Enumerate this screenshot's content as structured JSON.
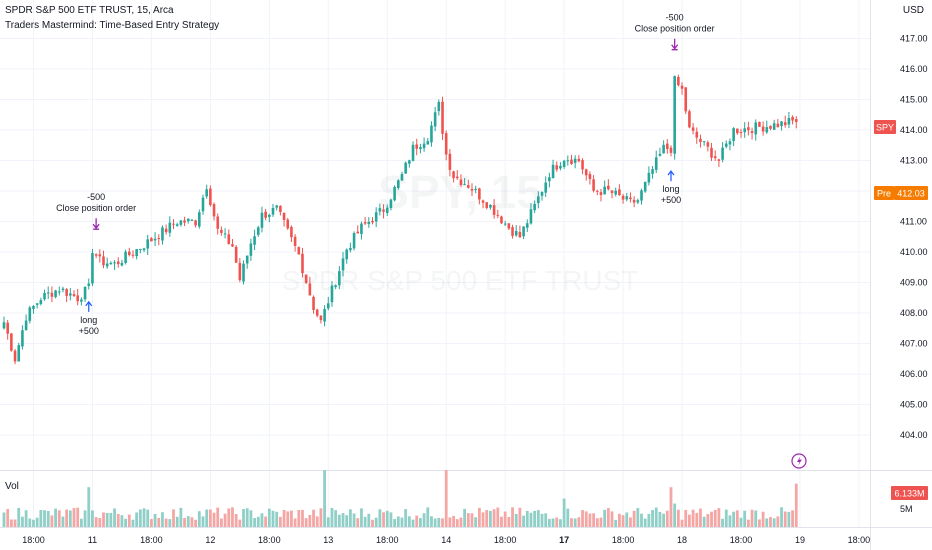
{
  "header": {
    "symbol_line": "SPDR S&P 500 ETF TRUST, 15, Arca",
    "strategy_line": "Traders Mastermind: Time-Based Entry Strategy",
    "currency": "USD",
    "volume_label": "Vol"
  },
  "watermark": {
    "ticker": "SPY, 15",
    "name": "SPDR S&P 500 ETF TRUST"
  },
  "badges": {
    "last_price_label": "SPY",
    "pre_label": "Pre",
    "pre_value": "412.03",
    "volume_value": "6.133M",
    "volume_ma": "5M"
  },
  "colors": {
    "up": "#26a69a",
    "down": "#ef5350",
    "vol_up": "#8fcfc7",
    "vol_down": "#f4a6a4",
    "entry_arrow": "#2962ff",
    "exit_arrow": "#9c27b0",
    "pre_badge": "#f57c00",
    "grid": "#f0f3fa"
  },
  "annotations": [
    {
      "type": "exit",
      "qty": "-500",
      "text": "Close position order",
      "x_index": 25
    },
    {
      "type": "entry",
      "qty": "+500",
      "text": "long",
      "x_index": 23
    },
    {
      "type": "exit",
      "qty": "-500",
      "text": "Close position order",
      "x_index": 182
    },
    {
      "type": "entry",
      "qty": "+500",
      "text": "long",
      "x_index": 181
    }
  ],
  "chart_data": {
    "type": "candlestick",
    "title": "SPDR S&P 500 ETF TRUST, 15, Arca",
    "subtitle": "Traders Mastermind: Time-Based Entry Strategy",
    "ylabel": "USD",
    "ylim": [
      403.4,
      417.6
    ],
    "y_ticks": [
      "417.00",
      "416.00",
      "415.00",
      "414.00",
      "413.00",
      "412.00",
      "411.00",
      "410.00",
      "409.00",
      "408.00",
      "407.00",
      "406.00",
      "405.00",
      "404.00"
    ],
    "x_ticks": [
      {
        "label": "18:00",
        "index": 8
      },
      {
        "label": "11",
        "index": 24
      },
      {
        "label": "18:00",
        "index": 40
      },
      {
        "label": "12",
        "index": 56
      },
      {
        "label": "18:00",
        "index": 72
      },
      {
        "label": "13",
        "index": 88
      },
      {
        "label": "18:00",
        "index": 104
      },
      {
        "label": "14",
        "index": 120
      },
      {
        "label": "18:00",
        "index": 136
      },
      {
        "label": "17",
        "index": 152,
        "bold": true
      },
      {
        "label": "18:00",
        "index": 168
      },
      {
        "label": "18",
        "index": 184
      },
      {
        "label": "18:00",
        "index": 200
      },
      {
        "label": "19",
        "index": 216
      },
      {
        "label": "18:00",
        "index": 232
      }
    ],
    "keypoints": [
      [
        0,
        407.7
      ],
      [
        3,
        406.5
      ],
      [
        6,
        407.9
      ],
      [
        10,
        408.5
      ],
      [
        15,
        408.8
      ],
      [
        20,
        408.5
      ],
      [
        23,
        408.8
      ],
      [
        24,
        410.1
      ],
      [
        26,
        409.7
      ],
      [
        30,
        409.6
      ],
      [
        40,
        410.4
      ],
      [
        47,
        411.0
      ],
      [
        52,
        411.0
      ],
      [
        55,
        412.2
      ],
      [
        58,
        410.7
      ],
      [
        62,
        410.2
      ],
      [
        64,
        409.1
      ],
      [
        67,
        410.3
      ],
      [
        70,
        411.2
      ],
      [
        74,
        411.4
      ],
      [
        80,
        409.9
      ],
      [
        84,
        408.2
      ],
      [
        86,
        407.7
      ],
      [
        88,
        408.4
      ],
      [
        93,
        410.1
      ],
      [
        97,
        410.8
      ],
      [
        103,
        411.4
      ],
      [
        108,
        412.5
      ],
      [
        111,
        413.4
      ],
      [
        115,
        413.8
      ],
      [
        118,
        414.8
      ],
      [
        120,
        413.2
      ],
      [
        122,
        412.5
      ],
      [
        126,
        412.2
      ],
      [
        132,
        411.5
      ],
      [
        137,
        410.8
      ],
      [
        140,
        410.5
      ],
      [
        144,
        411.5
      ],
      [
        148,
        412.6
      ],
      [
        152,
        413.1
      ],
      [
        156,
        413.0
      ],
      [
        160,
        412.0
      ],
      [
        164,
        412.0
      ],
      [
        170,
        411.6
      ],
      [
        172,
        411.7
      ],
      [
        176,
        412.7
      ],
      [
        179,
        413.4
      ],
      [
        181,
        413.4
      ],
      [
        182,
        415.6
      ],
      [
        184,
        415.3
      ],
      [
        186,
        414.0
      ],
      [
        190,
        413.5
      ],
      [
        194,
        413.0
      ],
      [
        198,
        414.0
      ],
      [
        205,
        414.1
      ],
      [
        211,
        414.2
      ],
      [
        215,
        414.3
      ]
    ],
    "bar_count": 216,
    "volume": {
      "series_name": "Vol",
      "ylim": [
        0,
        9000000
      ],
      "typical": 2000000,
      "spikes": [
        {
          "index": 23,
          "value": 5600000
        },
        {
          "index": 87,
          "value": 8000000
        },
        {
          "index": 120,
          "value": 8000000
        },
        {
          "index": 152,
          "value": 4000000
        },
        {
          "index": 181,
          "value": 5600000
        },
        {
          "index": 182,
          "value": 3300000
        },
        {
          "index": 215,
          "value": 6100000
        }
      ]
    }
  }
}
